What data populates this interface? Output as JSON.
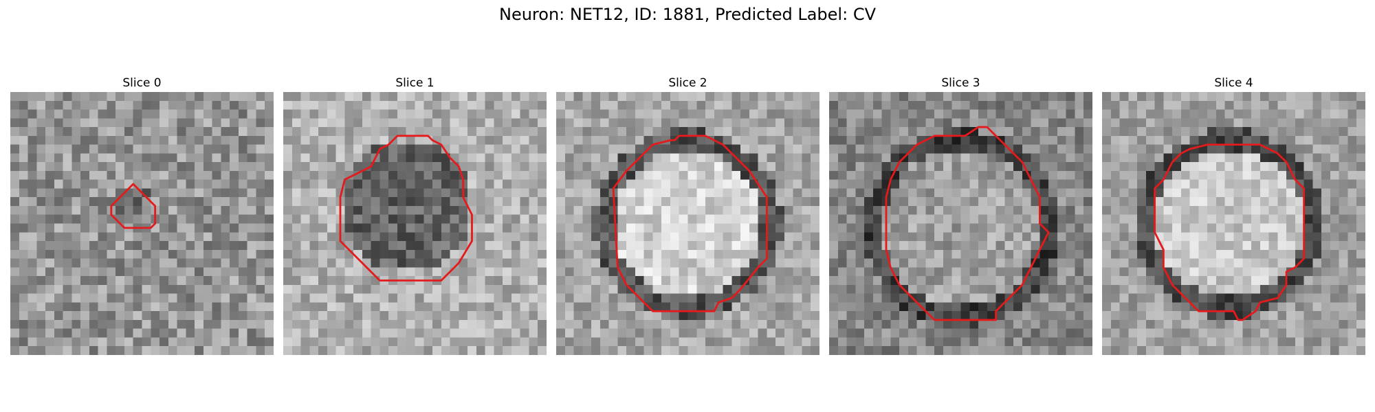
{
  "figure": {
    "title": "Neuron: NET12, ID: 1881, Predicted Label: CV"
  },
  "panels": [
    {
      "label": "Slice 0",
      "seed": 11,
      "contour_color": "#e41a1c"
    },
    {
      "label": "Slice 1",
      "seed": 23,
      "contour_color": "#e41a1c"
    },
    {
      "label": "Slice 2",
      "seed": 37,
      "contour_color": "#e41a1c"
    },
    {
      "label": "Slice 3",
      "seed": 41,
      "contour_color": "#e41a1c"
    },
    {
      "label": "Slice 4",
      "seed": 53,
      "contour_color": "#e41a1c"
    }
  ]
}
